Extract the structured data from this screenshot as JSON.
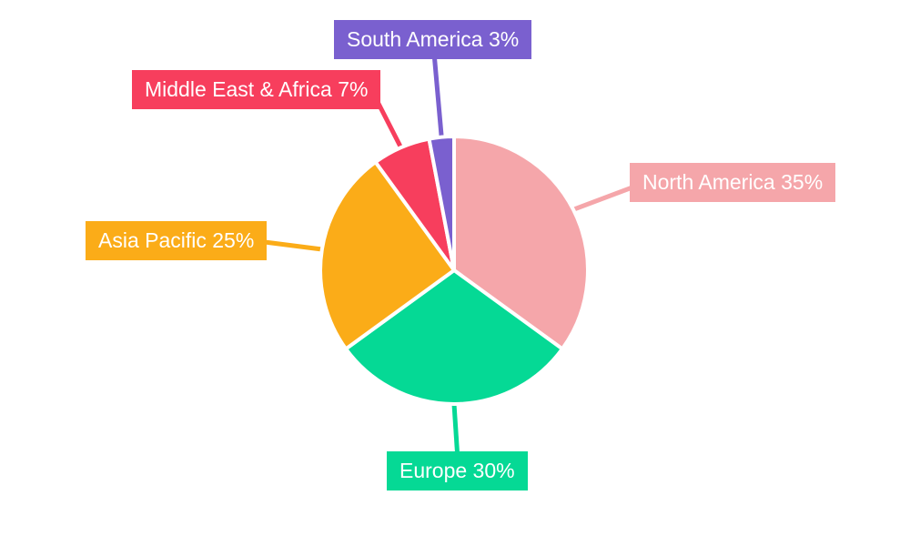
{
  "background": "#FFFFFF",
  "chart_data": {
    "type": "pie",
    "title": "",
    "unit": "%",
    "start_angle": "top (12 o'clock)",
    "direction": "clockwise",
    "legend_position": "none",
    "labels_style": "colored callout boxes with leader lines",
    "slice_border_color": "#FFFFFF",
    "categories": [
      "North America",
      "Europe",
      "Asia Pacific",
      "Middle East & Africa",
      "South America"
    ],
    "values": [
      35,
      30,
      25,
      7,
      3
    ],
    "slices": [
      {
        "name": "North America",
        "value": 35,
        "label": "North America 35%",
        "color": "#F5A6AA"
      },
      {
        "name": "Europe",
        "value": 30,
        "label": "Europe 30%",
        "color": "#05D995"
      },
      {
        "name": "Asia Pacific",
        "value": 25,
        "label": "Asia Pacific 25%",
        "color": "#FBAC18"
      },
      {
        "name": "Middle East & Africa",
        "value": 7,
        "label": "Middle East & Africa 7%",
        "color": "#F73E5D"
      },
      {
        "name": "South America",
        "value": 3,
        "label": "South America 3%",
        "color": "#7A60CF"
      }
    ]
  }
}
